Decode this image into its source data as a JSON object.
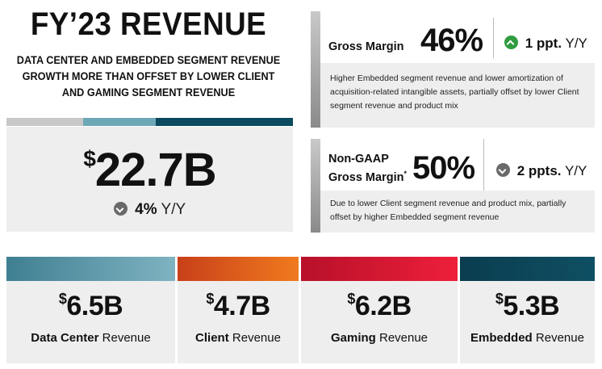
{
  "header": {
    "title": "FY’23 REVENUE",
    "subtitle_lines": [
      "DATA CENTER AND EMBEDDED SEGMENT REVENUE",
      "GROWTH MORE THAN OFFSET BY LOWER CLIENT",
      "AND GAMING SEGMENT REVENUE"
    ]
  },
  "total": {
    "currency": "$",
    "value": "22.7B",
    "change": "4%",
    "change_unit": "Y/Y",
    "direction_icon": "chevron-down-icon",
    "bar_colors": [
      "#c8c8c8",
      "#6ea7b5",
      "#0b4a5e"
    ]
  },
  "gross_margin": {
    "label": "Gross Margin",
    "value": "46%",
    "change": "1 ppt.",
    "change_unit": "Y/Y",
    "direction_icon": "chevron-up-icon",
    "description": "Higher Embedded segment revenue and lower amortization of acquisition-related intangible assets, partially offset by lower Client segment revenue and product mix"
  },
  "non_gaap_margin": {
    "label_line1": "Non-GAAP",
    "label_line2": "Gross Margin",
    "footnote_mark": "*",
    "value": "50%",
    "change": "2 ppts.",
    "change_unit": "Y/Y",
    "direction_icon": "chevron-down-icon",
    "description": "Due to lower Client segment revenue and product mix, partially offset by higher Embedded segment revenue"
  },
  "segments": [
    {
      "currency": "$",
      "value": "6.5B",
      "name": "Data Center",
      "suffix": "Revenue",
      "color_from": "#3f7f92",
      "color_to": "#7fb3c1"
    },
    {
      "currency": "$",
      "value": "4.7B",
      "name": "Client",
      "suffix": "Revenue",
      "color_from": "#c8401a",
      "color_to": "#f07a1e"
    },
    {
      "currency": "$",
      "value": "6.2B",
      "name": "Gaming",
      "suffix": "Revenue",
      "color_from": "#b8102a",
      "color_to": "#ee1f3a"
    },
    {
      "currency": "$",
      "value": "5.3B",
      "name": "Embedded",
      "suffix": "Revenue",
      "color_from": "#0a3d4f",
      "color_to": "#0f4f63"
    }
  ]
}
